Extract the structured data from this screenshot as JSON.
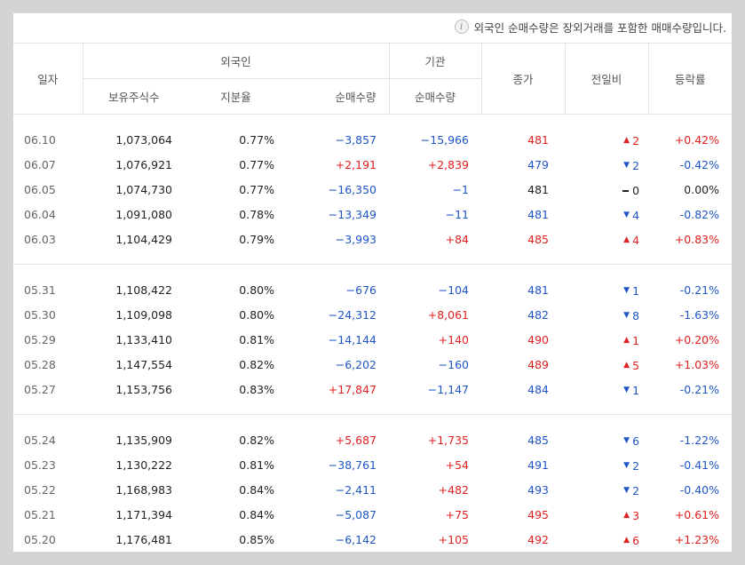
{
  "notice": "외국인 순매수량은 장외거래를 포함한 매매수량입니다.",
  "headers": {
    "date": "일자",
    "foreign": "외국인",
    "institution": "기관",
    "holdings": "보유주식수",
    "ratio": "지분율",
    "net_buy": "순매수량",
    "inst_net_buy": "순매수량",
    "close": "종가",
    "change": "전일비",
    "rate": "등락률"
  },
  "colors": {
    "up": "#e02020",
    "down": "#1f55c6",
    "flat": "#222222"
  },
  "groups": [
    [
      {
        "date": "06.10",
        "hold": "1,073,064",
        "ratio": "0.77%",
        "fnet": "−3,857",
        "fnet_c": "b",
        "inet": "−15,966",
        "inet_c": "b",
        "close": "481",
        "close_c": "r",
        "dir": "up",
        "chg": "2",
        "rate": "+0.42%",
        "rate_c": "r"
      },
      {
        "date": "06.07",
        "hold": "1,076,921",
        "ratio": "0.77%",
        "fnet": "+2,191",
        "fnet_c": "r",
        "inet": "+2,839",
        "inet_c": "r",
        "close": "479",
        "close_c": "b",
        "dir": "down",
        "chg": "2",
        "rate": "-0.42%",
        "rate_c": "b"
      },
      {
        "date": "06.05",
        "hold": "1,074,730",
        "ratio": "0.77%",
        "fnet": "−16,350",
        "fnet_c": "b",
        "inet": "−1",
        "inet_c": "b",
        "close": "481",
        "close_c": "k",
        "dir": "flat",
        "chg": "0",
        "rate": "0.00%",
        "rate_c": "k"
      },
      {
        "date": "06.04",
        "hold": "1,091,080",
        "ratio": "0.78%",
        "fnet": "−13,349",
        "fnet_c": "b",
        "inet": "−11",
        "inet_c": "b",
        "close": "481",
        "close_c": "b",
        "dir": "down",
        "chg": "4",
        "rate": "-0.82%",
        "rate_c": "b"
      },
      {
        "date": "06.03",
        "hold": "1,104,429",
        "ratio": "0.79%",
        "fnet": "−3,993",
        "fnet_c": "b",
        "inet": "+84",
        "inet_c": "r",
        "close": "485",
        "close_c": "r",
        "dir": "up",
        "chg": "4",
        "rate": "+0.83%",
        "rate_c": "r"
      }
    ],
    [
      {
        "date": "05.31",
        "hold": "1,108,422",
        "ratio": "0.80%",
        "fnet": "−676",
        "fnet_c": "b",
        "inet": "−104",
        "inet_c": "b",
        "close": "481",
        "close_c": "b",
        "dir": "down",
        "chg": "1",
        "rate": "-0.21%",
        "rate_c": "b"
      },
      {
        "date": "05.30",
        "hold": "1,109,098",
        "ratio": "0.80%",
        "fnet": "−24,312",
        "fnet_c": "b",
        "inet": "+8,061",
        "inet_c": "r",
        "close": "482",
        "close_c": "b",
        "dir": "down",
        "chg": "8",
        "rate": "-1.63%",
        "rate_c": "b"
      },
      {
        "date": "05.29",
        "hold": "1,133,410",
        "ratio": "0.81%",
        "fnet": "−14,144",
        "fnet_c": "b",
        "inet": "+140",
        "inet_c": "r",
        "close": "490",
        "close_c": "r",
        "dir": "up",
        "chg": "1",
        "rate": "+0.20%",
        "rate_c": "r"
      },
      {
        "date": "05.28",
        "hold": "1,147,554",
        "ratio": "0.82%",
        "fnet": "−6,202",
        "fnet_c": "b",
        "inet": "−160",
        "inet_c": "b",
        "close": "489",
        "close_c": "r",
        "dir": "up",
        "chg": "5",
        "rate": "+1.03%",
        "rate_c": "r"
      },
      {
        "date": "05.27",
        "hold": "1,153,756",
        "ratio": "0.83%",
        "fnet": "+17,847",
        "fnet_c": "r",
        "inet": "−1,147",
        "inet_c": "b",
        "close": "484",
        "close_c": "b",
        "dir": "down",
        "chg": "1",
        "rate": "-0.21%",
        "rate_c": "b"
      }
    ],
    [
      {
        "date": "05.24",
        "hold": "1,135,909",
        "ratio": "0.82%",
        "fnet": "+5,687",
        "fnet_c": "r",
        "inet": "+1,735",
        "inet_c": "r",
        "close": "485",
        "close_c": "b",
        "dir": "down",
        "chg": "6",
        "rate": "-1.22%",
        "rate_c": "b"
      },
      {
        "date": "05.23",
        "hold": "1,130,222",
        "ratio": "0.81%",
        "fnet": "−38,761",
        "fnet_c": "b",
        "inet": "+54",
        "inet_c": "r",
        "close": "491",
        "close_c": "b",
        "dir": "down",
        "chg": "2",
        "rate": "-0.41%",
        "rate_c": "b"
      },
      {
        "date": "05.22",
        "hold": "1,168,983",
        "ratio": "0.84%",
        "fnet": "−2,411",
        "fnet_c": "b",
        "inet": "+482",
        "inet_c": "r",
        "close": "493",
        "close_c": "b",
        "dir": "down",
        "chg": "2",
        "rate": "-0.40%",
        "rate_c": "b"
      },
      {
        "date": "05.21",
        "hold": "1,171,394",
        "ratio": "0.84%",
        "fnet": "−5,087",
        "fnet_c": "b",
        "inet": "+75",
        "inet_c": "r",
        "close": "495",
        "close_c": "r",
        "dir": "up",
        "chg": "3",
        "rate": "+0.61%",
        "rate_c": "r"
      },
      {
        "date": "05.20",
        "hold": "1,176,481",
        "ratio": "0.85%",
        "fnet": "−6,142",
        "fnet_c": "b",
        "inet": "+105",
        "inet_c": "r",
        "close": "492",
        "close_c": "r",
        "dir": "up",
        "chg": "6",
        "rate": "+1.23%",
        "rate_c": "r"
      }
    ]
  ]
}
